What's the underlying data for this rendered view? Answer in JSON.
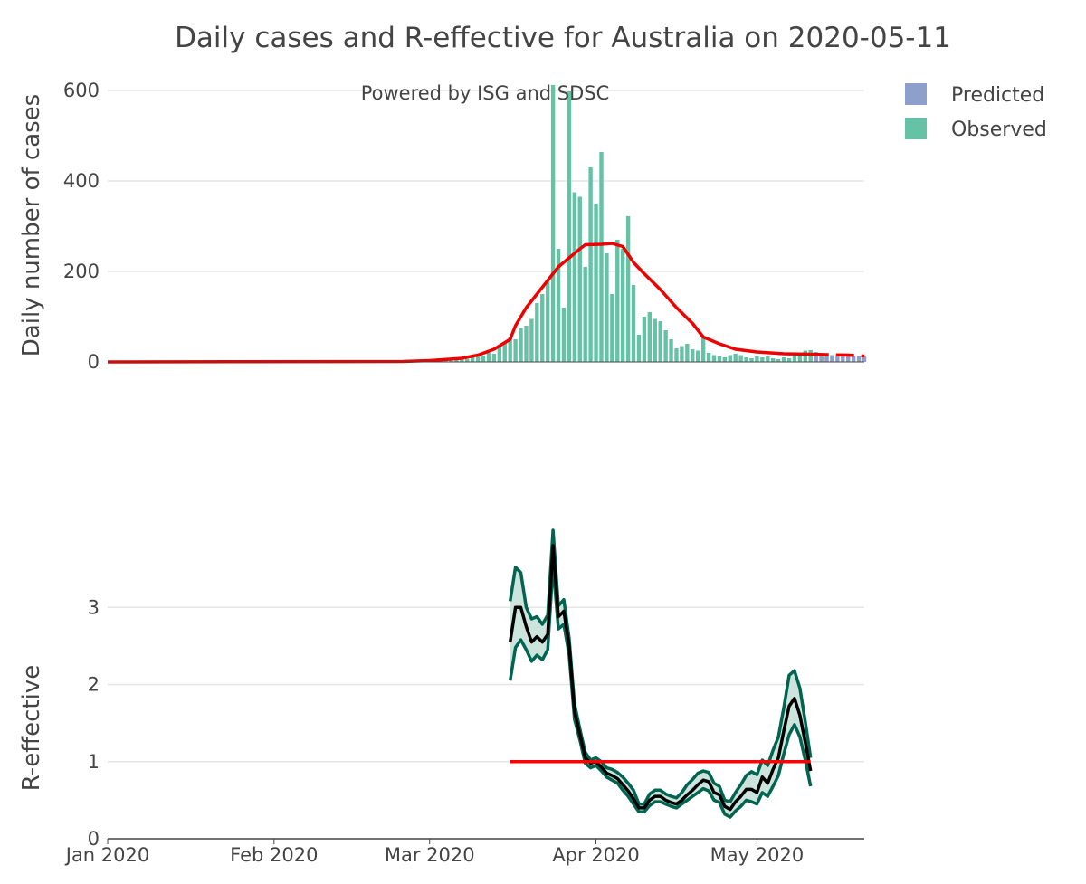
{
  "title": "Daily cases and R-effective for Australia on 2020-05-11",
  "annotation": "Powered by ISG and SDSC",
  "colors": {
    "observed": "#66c2a5",
    "predicted": "#8da0cb",
    "average_line": "#ee0000",
    "r_line": "#000000",
    "r_band_edge": "#006450",
    "r_band_fill": "#cde4dd",
    "threshold": "#ff0000",
    "grid": "#e5e5e5",
    "text": "#444444"
  },
  "legend": [
    {
      "label": "Predicted",
      "color_key": "predicted"
    },
    {
      "label": "Observed",
      "color_key": "observed"
    }
  ],
  "x_ticks": [
    "Jan 2020",
    "Feb 2020",
    "Mar 2020",
    "Apr 2020",
    "May 2020"
  ],
  "chart_data": [
    {
      "type": "bar",
      "ylabel": "Daily number of cases",
      "ylim": [
        0,
        620
      ],
      "yticks": [
        0,
        200,
        400,
        600
      ],
      "grid": true,
      "legend_position": "top-right",
      "x_start": "2020-01-01",
      "observed": {
        "name": "Observed",
        "start": "2020-02-28",
        "values": [
          2,
          3,
          3,
          4,
          5,
          6,
          8,
          7,
          9,
          6,
          10,
          15,
          12,
          20,
          18,
          35,
          42,
          55,
          50,
          75,
          80,
          95,
          130,
          150,
          180,
          612,
          250,
          120,
          598,
          375,
          365,
          210,
          430,
          350,
          464,
          240,
          150,
          270,
          250,
          322,
          170,
          60,
          100,
          110,
          95,
          90,
          70,
          50,
          30,
          35,
          40,
          28,
          25,
          55,
          20,
          15,
          12,
          10,
          15,
          18,
          15,
          10,
          8,
          12,
          10,
          12,
          8,
          6,
          10,
          8,
          15,
          20,
          25,
          26,
          22,
          18,
          15,
          10
        ]
      },
      "predicted": {
        "name": "Predicted",
        "start": "2020-05-12",
        "values": [
          15,
          15,
          15,
          15,
          14,
          14,
          14,
          14,
          13,
          13
        ]
      },
      "average_line": {
        "observed_start": "2020-01-01",
        "observed_end": "2020-05-11",
        "points": [
          [
            "2020-01-01",
            0
          ],
          [
            "2020-02-25",
            1
          ],
          [
            "2020-03-01",
            3
          ],
          [
            "2020-03-07",
            8
          ],
          [
            "2020-03-10",
            15
          ],
          [
            "2020-03-13",
            28
          ],
          [
            "2020-03-16",
            50
          ],
          [
            "2020-03-17",
            80
          ],
          [
            "2020-03-19",
            120
          ],
          [
            "2020-03-21",
            150
          ],
          [
            "2020-03-23",
            180
          ],
          [
            "2020-03-25",
            210
          ],
          [
            "2020-03-27",
            230
          ],
          [
            "2020-03-29",
            250
          ],
          [
            "2020-03-30",
            259
          ],
          [
            "2020-04-02",
            260
          ],
          [
            "2020-04-04",
            262
          ],
          [
            "2020-04-06",
            255
          ],
          [
            "2020-04-08",
            220
          ],
          [
            "2020-04-10",
            195
          ],
          [
            "2020-04-13",
            160
          ],
          [
            "2020-04-16",
            120
          ],
          [
            "2020-04-19",
            85
          ],
          [
            "2020-04-21",
            55
          ],
          [
            "2020-04-24",
            40
          ],
          [
            "2020-04-27",
            28
          ],
          [
            "2020-05-01",
            22
          ],
          [
            "2020-05-06",
            18
          ],
          [
            "2020-05-11",
            17
          ],
          [
            "2020-05-14",
            16
          ],
          [
            "2020-05-18",
            15
          ],
          [
            "2020-05-21",
            13
          ]
        ]
      }
    },
    {
      "type": "line",
      "ylabel": "R-effective",
      "ylim": [
        0,
        4
      ],
      "yticks": [
        0,
        1,
        2,
        3
      ],
      "grid": true,
      "threshold": {
        "value": 1,
        "start": "2020-03-16",
        "end": "2020-05-11"
      },
      "start": "2020-03-16",
      "median": [
        2.55,
        3.0,
        3.0,
        2.75,
        2.55,
        2.62,
        2.55,
        2.65,
        3.8,
        2.88,
        2.95,
        2.5,
        1.65,
        1.35,
        1.05,
        0.98,
        1.0,
        0.93,
        0.85,
        0.82,
        0.78,
        0.7,
        0.62,
        0.52,
        0.4,
        0.4,
        0.5,
        0.55,
        0.55,
        0.5,
        0.47,
        0.45,
        0.5,
        0.57,
        0.63,
        0.7,
        0.76,
        0.74,
        0.6,
        0.57,
        0.42,
        0.38,
        0.48,
        0.55,
        0.64,
        0.64,
        0.6,
        0.8,
        0.72,
        0.9,
        1.05,
        1.4,
        1.72,
        1.82,
        1.6,
        1.25,
        0.88
      ],
      "upper": [
        3.08,
        3.52,
        3.45,
        3.0,
        2.85,
        2.88,
        2.78,
        2.9,
        4.0,
        3.02,
        3.1,
        2.6,
        1.75,
        1.42,
        1.12,
        1.02,
        1.05,
        1.0,
        0.92,
        0.9,
        0.86,
        0.8,
        0.72,
        0.63,
        0.45,
        0.45,
        0.58,
        0.63,
        0.63,
        0.58,
        0.55,
        0.53,
        0.6,
        0.7,
        0.77,
        0.85,
        0.88,
        0.86,
        0.72,
        0.68,
        0.5,
        0.48,
        0.6,
        0.7,
        0.82,
        0.87,
        0.83,
        1.02,
        0.95,
        1.15,
        1.32,
        1.7,
        2.12,
        2.18,
        1.95,
        1.52,
        1.05
      ],
      "lower": [
        2.05,
        2.48,
        2.58,
        2.45,
        2.3,
        2.38,
        2.32,
        2.45,
        3.55,
        2.72,
        2.78,
        2.38,
        1.55,
        1.28,
        0.98,
        0.92,
        0.95,
        0.88,
        0.8,
        0.76,
        0.72,
        0.63,
        0.55,
        0.45,
        0.35,
        0.35,
        0.43,
        0.48,
        0.48,
        0.45,
        0.42,
        0.4,
        0.45,
        0.5,
        0.55,
        0.6,
        0.65,
        0.62,
        0.5,
        0.47,
        0.32,
        0.28,
        0.36,
        0.42,
        0.5,
        0.48,
        0.45,
        0.6,
        0.55,
        0.68,
        0.82,
        1.1,
        1.35,
        1.48,
        1.32,
        1.02,
        0.68
      ]
    }
  ]
}
